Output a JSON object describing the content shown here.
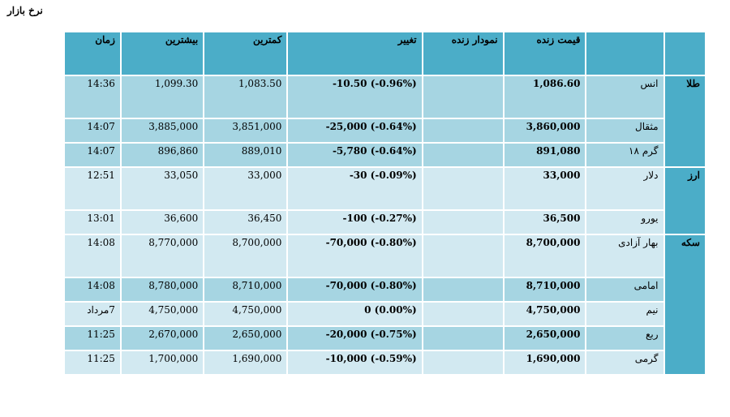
{
  "page": {
    "title": "نرخ بازار"
  },
  "headers": {
    "group": "",
    "item": "",
    "price": "قیمت زنده",
    "chart": "نمودار زنده",
    "change": "تغییر",
    "low": "کمترین",
    "high": "بیشترین",
    "time": "زمان"
  },
  "groups": [
    {
      "name": "طلا",
      "rows": [
        {
          "item": "انس",
          "price": "1,086.60",
          "change": "-10.50 (-0.96%)",
          "low": "1,083.50",
          "high": "1,099.30",
          "time": "14:36"
        },
        {
          "item": "مثقال",
          "price": "3,860,000",
          "change": "-25,000 (-0.64%)",
          "low": "3,851,000",
          "high": "3,885,000",
          "time": "14:07"
        },
        {
          "item": "گرم ۱۸",
          "price": "891,080",
          "change": "-5,780 (-0.64%)",
          "low": "889,010",
          "high": "896,860",
          "time": "14:07"
        }
      ]
    },
    {
      "name": "ارز",
      "rows": [
        {
          "item": "دلار",
          "price": "33,000",
          "change": "-30 (-0.09%)",
          "low": "33,000",
          "high": "33,050",
          "time": "12:51"
        },
        {
          "item": "یورو",
          "price": "36,500",
          "change": "-100 (-0.27%)",
          "low": "36,450",
          "high": "36,600",
          "time": "13:01"
        }
      ]
    },
    {
      "name": "سکه",
      "rows": [
        {
          "item": "بهار آزادی",
          "price": "8,700,000",
          "change": "-70,000 (-0.80%)",
          "low": "8,700,000",
          "high": "8,770,000",
          "time": "14:08"
        },
        {
          "item": "امامی",
          "price": "8,710,000",
          "change": "-70,000 (-0.80%)",
          "low": "8,710,000",
          "high": "8,780,000",
          "time": "14:08"
        },
        {
          "item": "نیم",
          "price": "4,750,000",
          "change": "0 (0.00%)",
          "low": "4,750,000",
          "high": "4,750,000",
          "time": "7مرداد"
        },
        {
          "item": "ربع",
          "price": "2,650,000",
          "change": "-20,000 (-0.75%)",
          "low": "2,650,000",
          "high": "2,670,000",
          "time": "11:25"
        },
        {
          "item": "گرمی",
          "price": "1,690,000",
          "change": "-10,000 (-0.59%)",
          "low": "1,690,000",
          "high": "1,700,000",
          "time": "11:25"
        }
      ]
    }
  ]
}
